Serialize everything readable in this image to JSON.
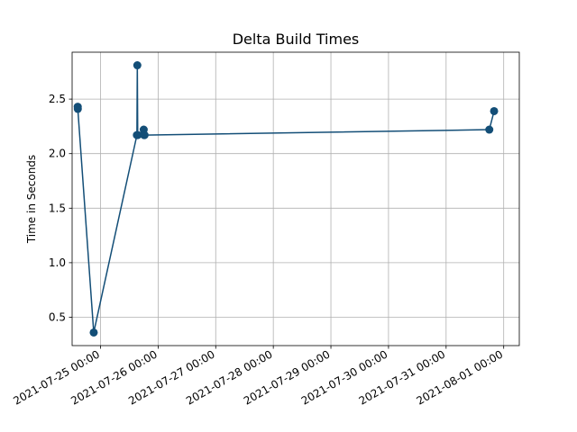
{
  "chart_data": {
    "type": "line",
    "title": "Delta Build Times",
    "xlabel": "",
    "ylabel": "Time in Seconds",
    "x_axis_type": "datetime",
    "xlim": [
      "2021-07-24 12:10",
      "2021-08-01 06:30"
    ],
    "ylim": [
      0.24,
      2.93
    ],
    "grid": true,
    "marker": "circle",
    "color": "#134e77",
    "x_ticks": [
      "2021-07-25 00:00",
      "2021-07-26 00:00",
      "2021-07-27 00:00",
      "2021-07-28 00:00",
      "2021-07-29 00:00",
      "2021-07-30 00:00",
      "2021-07-31 00:00",
      "2021-08-01 00:00"
    ],
    "y_ticks": [
      "0.5",
      "1.0",
      "1.5",
      "2.0",
      "2.5"
    ],
    "y_tick_values": [
      0.5,
      1.0,
      1.5,
      2.0,
      2.5
    ],
    "series": [
      {
        "x": [
          "2021-07-24 14:30",
          "2021-07-24 14:32",
          "2021-07-24 21:10",
          "2021-07-25 15:10",
          "2021-07-25 15:20",
          "2021-07-25 15:30",
          "2021-07-25 18:00",
          "2021-07-25 18:10",
          "2021-07-25 18:20",
          "2021-07-31 18:00",
          "2021-07-31 20:00"
        ],
        "values": [
          2.43,
          2.41,
          0.36,
          2.17,
          2.81,
          2.17,
          2.22,
          2.17,
          2.17,
          2.22,
          2.39
        ]
      }
    ]
  }
}
